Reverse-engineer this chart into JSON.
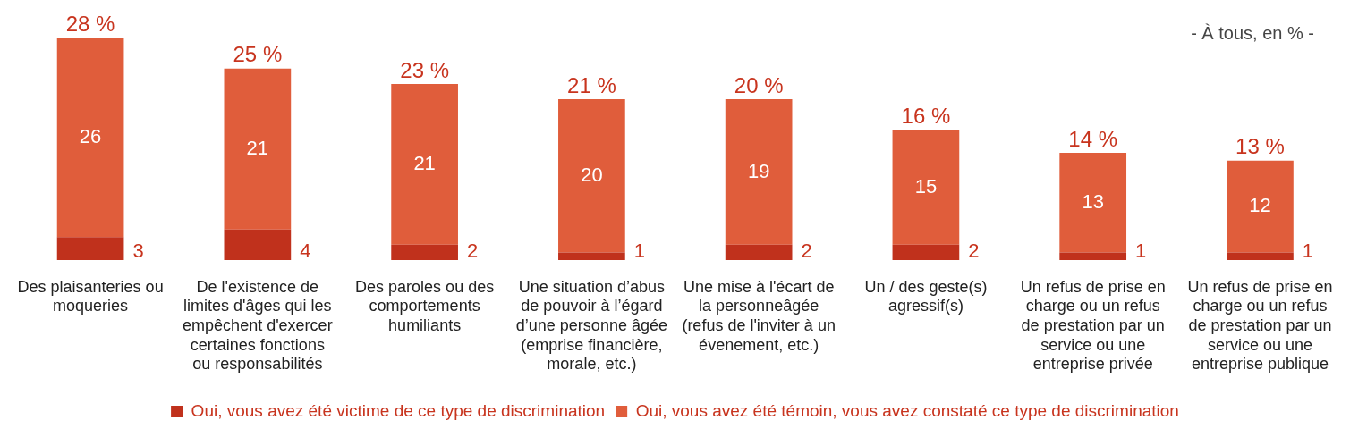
{
  "chart_data": {
    "type": "bar",
    "stacked": true,
    "data_labels": true,
    "tick_labels": "x",
    "grid": false,
    "legend": "bottom",
    "categories": [
      "Des plaisanteries ou moqueries",
      "De l'existence de limites d'âges qui les empêchent d'exercer certaines fonctions ou responsabilités",
      "Des paroles ou des comportements humiliants",
      "Une situation d’abus de pouvoir à l’égard d’une personne âgée (emprise financière, morale, etc.)",
      "Une mise à l'écart de la personneâgée (refus de l'inviter à un évenement, etc.)",
      "Un / des geste(s) agressif(s)",
      "Un refus de prise en charge ou un refus de prestation par un service ou une entreprise privée",
      "Un refus de prise en charge ou un refus de prestation par un service ou une entreprise publique"
    ],
    "series": [
      {
        "name": "Oui, vous avez été victime de ce type de discrimination",
        "color": "#c0311c",
        "values": [
          3,
          4,
          2,
          1,
          2,
          2,
          1,
          1
        ]
      },
      {
        "name": "Oui, vous avez été témoin, vous avez constaté ce type de discrimination",
        "color": "#e05d3b",
        "values": [
          26,
          21,
          21,
          20,
          19,
          15,
          13,
          12
        ]
      }
    ],
    "totals": [
      "28 %",
      "25 %",
      "23 %",
      "21 %",
      "20 %",
      "16 %",
      "14 %",
      "13 %"
    ],
    "annotations": [
      "- À tous, en % -"
    ]
  }
}
